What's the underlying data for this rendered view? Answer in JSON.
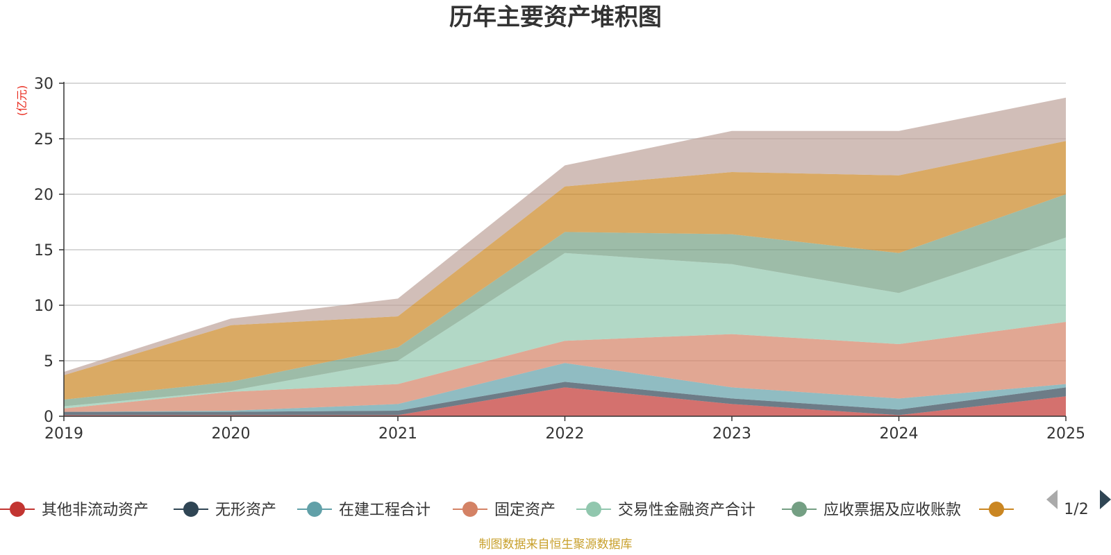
{
  "chart_data": {
    "type": "area",
    "stacked": true,
    "title": "历年主要资产堆积图",
    "unit_label": "(亿元)",
    "source": "制图数据来自恒生聚源数据库",
    "categories": [
      "2019",
      "2020",
      "2021",
      "2022",
      "2023",
      "2024",
      "2025"
    ],
    "ylim": [
      0,
      30
    ],
    "yticks": [
      0,
      5,
      10,
      15,
      20,
      25,
      30
    ],
    "grid": true,
    "legend_position": "bottom",
    "series": [
      {
        "name": "其他非流动资产",
        "color": "#c23531",
        "values": [
          0.1,
          0.1,
          0.1,
          2.6,
          1.1,
          0.1,
          1.8
        ]
      },
      {
        "name": "无形资产",
        "color": "#2f4554",
        "values": [
          0.3,
          0.3,
          0.4,
          0.5,
          0.5,
          0.5,
          0.8
        ]
      },
      {
        "name": "在建工程合计",
        "color": "#61a0a8",
        "values": [
          0.0,
          0.1,
          0.6,
          1.7,
          1.0,
          1.0,
          0.3
        ]
      },
      {
        "name": "固定资产",
        "color": "#d48265",
        "values": [
          0.3,
          1.7,
          1.8,
          2.0,
          4.8,
          4.9,
          5.6
        ]
      },
      {
        "name": "交易性金融资产合计",
        "color": "#91c7ae",
        "values": [
          0.2,
          0.1,
          2.1,
          7.9,
          6.3,
          4.6,
          7.6
        ]
      },
      {
        "name": "应收票据及应收账款",
        "color": "#749f83",
        "values": [
          0.6,
          0.8,
          1.2,
          1.9,
          2.7,
          3.6,
          3.9
        ]
      },
      {
        "name": "",
        "color": "#ca8622",
        "values": [
          2.2,
          5.1,
          2.8,
          4.1,
          5.6,
          7.0,
          4.8
        ]
      },
      {
        "name": "",
        "color": "#bda29a",
        "values": [
          0.3,
          0.6,
          1.6,
          1.9,
          3.7,
          4.0,
          3.9
        ]
      }
    ],
    "legend_visible_count": 7,
    "legend_page": "1/2"
  }
}
